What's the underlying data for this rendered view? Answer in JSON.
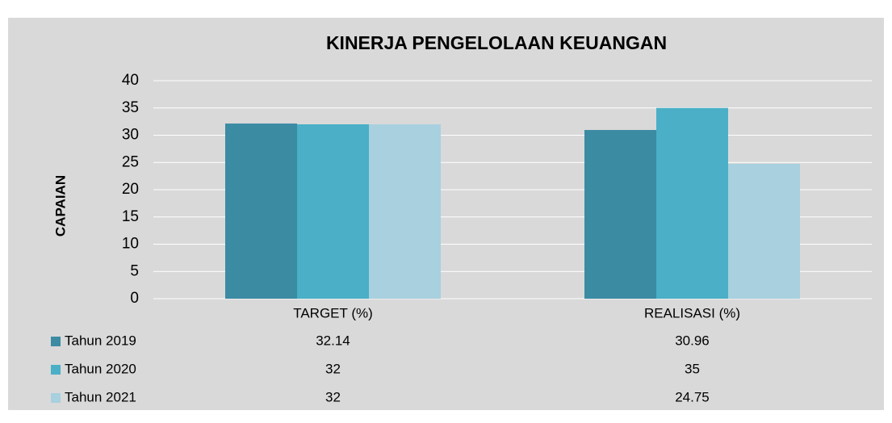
{
  "chart_data": {
    "type": "bar",
    "title": "KINERJA PENGELOLAAN KEUANGAN",
    "y_label": "CAPAIAN",
    "categories": [
      "TARGET (%)",
      "REALISASI (%)"
    ],
    "series": [
      {
        "name": "Tahun 2019",
        "color": "#3b8ba3",
        "values": [
          32.14,
          30.96
        ]
      },
      {
        "name": "Tahun 2020",
        "color": "#4aafc7",
        "values": [
          32,
          35
        ]
      },
      {
        "name": "Tahun 2021",
        "color": "#a8d0df",
        "values": [
          32,
          24.75
        ]
      }
    ],
    "ylim": [
      0,
      40
    ],
    "yticks": [
      0,
      5,
      10,
      15,
      20,
      25,
      30,
      35,
      40
    ],
    "grid": true,
    "legend": "bottom-left"
  }
}
